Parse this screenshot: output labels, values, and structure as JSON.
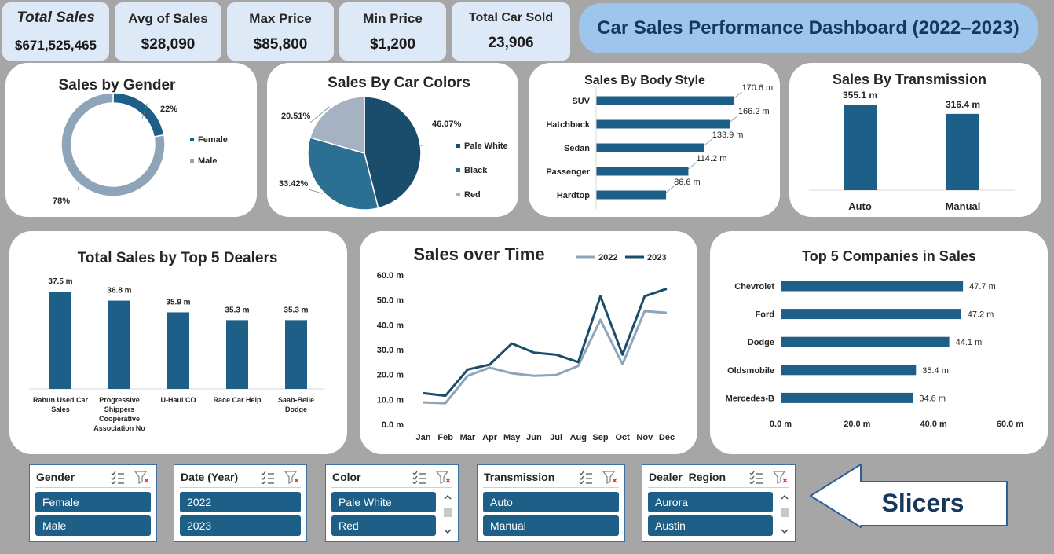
{
  "kpis": {
    "total_sales": {
      "label": "Total Sales",
      "value": "$671,525,465"
    },
    "avg_sales": {
      "label": "Avg of Sales",
      "value": "$28,090"
    },
    "max_price": {
      "label": "Max Price",
      "value": "$85,800"
    },
    "min_price": {
      "label": "Min Price",
      "value": "$1,200"
    },
    "total_sold": {
      "label": "Total Car Sold",
      "value": "23,906"
    }
  },
  "dashboard_title": "Car Sales Performance Dashboard (2022–2023)",
  "colors": {
    "dark": "#1e5f87",
    "mid": "#2b6f93",
    "light": "#8ea4b8",
    "gray": "#a6a6a6",
    "accent_title": "#16385c"
  },
  "chart_data": [
    {
      "id": "gender",
      "type": "pie",
      "title": "Sales by Gender",
      "categories": [
        "Female",
        "Male"
      ],
      "values": [
        22,
        78
      ],
      "labels": [
        "22%",
        "78%"
      ],
      "colors": [
        "#1e5f87",
        "#8ea4b8"
      ],
      "legend": "right",
      "donut": true
    },
    {
      "id": "colors",
      "type": "pie",
      "title": "Sales By Car Colors",
      "categories": [
        "Pale White",
        "Black",
        "Red"
      ],
      "values": [
        46.07,
        33.42,
        20.51
      ],
      "labels": [
        "46.07%",
        "33.42%",
        "20.51%"
      ],
      "colors": [
        "#1a4d6b",
        "#2b6f93",
        "#a4b2c1"
      ],
      "legend": "right"
    },
    {
      "id": "body",
      "type": "bar",
      "orientation": "horizontal",
      "title": "Sales By Body Style",
      "categories": [
        "SUV",
        "Hatchback",
        "Sedan",
        "Passenger",
        "Hardtop"
      ],
      "values": [
        170.6,
        166.2,
        133.9,
        114.2,
        86.6
      ],
      "labels": [
        "170.6 m",
        "166.2 m",
        "133.9 m",
        "114.2 m",
        "86.6 m"
      ]
    },
    {
      "id": "transmission",
      "type": "bar",
      "title": "Sales By Transmission",
      "categories": [
        "Auto",
        "Manual"
      ],
      "values": [
        355.1,
        316.4
      ],
      "labels": [
        "355.1 m",
        "316.4 m"
      ]
    },
    {
      "id": "dealers",
      "type": "bar",
      "title": "Total Sales by Top 5 Dealers",
      "categories": [
        "Rabun Used Car Sales",
        "Progressive Shippers Cooperative Association No",
        "U-Haul CO",
        "Race Car Help",
        "Saab-Belle Dodge"
      ],
      "category_lines": [
        [
          "Rabun Used Car",
          "Sales"
        ],
        [
          "Progressive",
          "Shippers",
          "Cooperative",
          "Association No"
        ],
        [
          "U-Haul CO"
        ],
        [
          "Race Car Help"
        ],
        [
          "Saab-Belle",
          "Dodge"
        ]
      ],
      "values": [
        37.5,
        36.8,
        35.9,
        35.3,
        35.3
      ],
      "labels": [
        "37.5 m",
        "36.8 m",
        "35.9 m",
        "35.3 m",
        "35.3 m"
      ]
    },
    {
      "id": "time",
      "type": "line",
      "title": "Sales over Time",
      "categories": [
        "Jan",
        "Feb",
        "Mar",
        "Apr",
        "May",
        "Jun",
        "Jul",
        "Aug",
        "Sep",
        "Oct",
        "Nov",
        "Dec"
      ],
      "series": [
        {
          "name": "2022",
          "color": "#8ea4b8",
          "values": [
            8.8,
            8.5,
            19.5,
            22.8,
            20.5,
            19.5,
            19.8,
            23.5,
            42.0,
            24.2,
            45.5,
            44.8
          ]
        },
        {
          "name": "2023",
          "color": "#1a4d6b",
          "values": [
            12.5,
            11.5,
            22.0,
            24.0,
            32.5,
            28.8,
            28.0,
            25.0,
            51.5,
            28.0,
            51.5,
            54.5
          ]
        }
      ],
      "ylim": [
        0,
        60
      ],
      "yticks": [
        "0.0 m",
        "10.0 m",
        "20.0 m",
        "30.0 m",
        "40.0 m",
        "50.0 m",
        "60.0 m"
      ],
      "legend": "top-right"
    },
    {
      "id": "companies",
      "type": "bar",
      "orientation": "horizontal",
      "title": "Top 5 Companies in Sales",
      "categories": [
        "Chevrolet",
        "Ford",
        "Dodge",
        "Oldsmobile",
        "Mercedes-B"
      ],
      "values": [
        47.7,
        47.2,
        44.1,
        35.4,
        34.6
      ],
      "labels": [
        "47.7 m",
        "47.2 m",
        "44.1 m",
        "35.4 m",
        "34.6 m"
      ],
      "xlim": [
        0,
        60
      ],
      "xticks": [
        "0.0 m",
        "20.0 m",
        "40.0 m",
        "60.0 m"
      ]
    }
  ],
  "slicers": [
    {
      "title": "Gender",
      "items": [
        "Female",
        "Male"
      ],
      "scroll": false
    },
    {
      "title": "Date (Year)",
      "items": [
        "2022",
        "2023"
      ],
      "scroll": false
    },
    {
      "title": "Color",
      "items": [
        "Pale White",
        "Red"
      ],
      "scroll": true
    },
    {
      "title": "Transmission",
      "items": [
        "Auto",
        "Manual"
      ],
      "scroll": false
    },
    {
      "title": "Dealer_Region",
      "items": [
        "Aurora",
        "Austin"
      ],
      "scroll": true
    }
  ],
  "callout": "Slicers"
}
